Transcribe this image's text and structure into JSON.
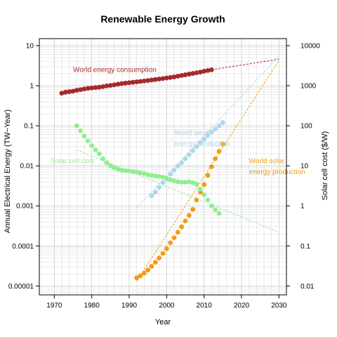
{
  "chart_data": {
    "type": "scatter",
    "title": "Renewable Energy Growth",
    "xlabel": "Year",
    "ylabel": "Annual Electrical Energy (TW−Year)",
    "y2label": "Solar cell cost ($/W)",
    "xlim": [
      1966,
      2032
    ],
    "ylim": [
      6e-06,
      15
    ],
    "y2lim": [
      0.006,
      15000
    ],
    "y_scale": "log",
    "y2_scale": "log",
    "grid": true,
    "x_ticks": [
      1970,
      1980,
      1990,
      2000,
      2010,
      2020,
      2030
    ],
    "y_ticks": [
      {
        "value": 10,
        "label": "10"
      },
      {
        "value": 1,
        "label": "1"
      },
      {
        "value": 0.1,
        "label": "0.1"
      },
      {
        "value": 0.01,
        "label": "0.01"
      },
      {
        "value": 0.001,
        "label": "0.001"
      },
      {
        "value": 0.0001,
        "label": "0.0001"
      },
      {
        "value": 1e-05,
        "label": "0.00001"
      }
    ],
    "y2_ticks": [
      {
        "value": 10000,
        "label": "10000"
      },
      {
        "value": 1000,
        "label": "1000"
      },
      {
        "value": 100,
        "label": "100"
      },
      {
        "value": 10,
        "label": "10"
      },
      {
        "value": 1,
        "label": "1"
      },
      {
        "value": 0.1,
        "label": "0.1"
      },
      {
        "value": 0.01,
        "label": "0.01"
      }
    ],
    "series": [
      {
        "name": "World energy consumption",
        "color": "#a52a2a",
        "axis": "left",
        "points": [
          [
            1972,
            0.65
          ],
          [
            1973,
            0.69
          ],
          [
            1974,
            0.71
          ],
          [
            1975,
            0.73
          ],
          [
            1976,
            0.77
          ],
          [
            1977,
            0.8
          ],
          [
            1978,
            0.83
          ],
          [
            1979,
            0.86
          ],
          [
            1980,
            0.88
          ],
          [
            1981,
            0.9
          ],
          [
            1982,
            0.92
          ],
          [
            1983,
            0.95
          ],
          [
            1984,
            0.99
          ],
          [
            1985,
            1.02
          ],
          [
            1986,
            1.05
          ],
          [
            1987,
            1.09
          ],
          [
            1988,
            1.13
          ],
          [
            1989,
            1.16
          ],
          [
            1990,
            1.19
          ],
          [
            1991,
            1.22
          ],
          [
            1992,
            1.25
          ],
          [
            1993,
            1.28
          ],
          [
            1994,
            1.31
          ],
          [
            1995,
            1.35
          ],
          [
            1996,
            1.39
          ],
          [
            1997,
            1.43
          ],
          [
            1998,
            1.47
          ],
          [
            1999,
            1.51
          ],
          [
            2000,
            1.56
          ],
          [
            2001,
            1.61
          ],
          [
            2002,
            1.66
          ],
          [
            2003,
            1.73
          ],
          [
            2004,
            1.8
          ],
          [
            2005,
            1.87
          ],
          [
            2006,
            1.95
          ],
          [
            2007,
            2.03
          ],
          [
            2008,
            2.11
          ],
          [
            2009,
            2.19
          ],
          [
            2010,
            2.3
          ],
          [
            2011,
            2.4
          ],
          [
            2012,
            2.5
          ]
        ],
        "trend": [
          [
            2012,
            2.5
          ],
          [
            2030,
            4.6
          ]
        ]
      },
      {
        "name": "World wind energy production",
        "color": "#add8e6",
        "axis": "left",
        "points": [
          [
            1996,
            0.0018
          ],
          [
            1997,
            0.0022
          ],
          [
            1998,
            0.0029
          ],
          [
            1999,
            0.0038
          ],
          [
            2000,
            0.0047
          ],
          [
            2001,
            0.0062
          ],
          [
            2002,
            0.0078
          ],
          [
            2003,
            0.0098
          ],
          [
            2004,
            0.012
          ],
          [
            2005,
            0.015
          ],
          [
            2006,
            0.019
          ],
          [
            2007,
            0.024
          ],
          [
            2008,
            0.03
          ],
          [
            2009,
            0.038
          ],
          [
            2010,
            0.047
          ],
          [
            2011,
            0.058
          ],
          [
            2012,
            0.07
          ],
          [
            2013,
            0.083
          ],
          [
            2014,
            0.1
          ],
          [
            2015,
            0.12
          ]
        ],
        "trend": [
          [
            1992,
            0.0009
          ],
          [
            2030,
            5.5
          ]
        ]
      },
      {
        "name": "World solar energy production",
        "color": "#f39c12",
        "axis": "left",
        "points": [
          [
            1992,
            1.6e-05
          ],
          [
            1993,
            1.8e-05
          ],
          [
            1994,
            2.1e-05
          ],
          [
            1995,
            2.5e-05
          ],
          [
            1996,
            3.1e-05
          ],
          [
            1997,
            3.9e-05
          ],
          [
            1998,
            5e-05
          ],
          [
            1999,
            6.5e-05
          ],
          [
            2000,
            8.5e-05
          ],
          [
            2001,
            0.00012
          ],
          [
            2002,
            0.00016
          ],
          [
            2003,
            0.00022
          ],
          [
            2004,
            0.0003
          ],
          [
            2005,
            0.00042
          ],
          [
            2006,
            0.00058
          ],
          [
            2007,
            0.00082
          ],
          [
            2008,
            0.0014
          ],
          [
            2009,
            0.0022
          ],
          [
            2010,
            0.0034
          ],
          [
            2011,
            0.0058
          ],
          [
            2012,
            0.0095
          ],
          [
            2013,
            0.015
          ],
          [
            2014,
            0.023
          ],
          [
            2015,
            0.035
          ]
        ],
        "trend": [
          [
            1992,
            1.3e-05
          ],
          [
            2030,
            4.3
          ]
        ]
      },
      {
        "name": "Solar cell cost",
        "color": "#90ee90",
        "axis": "right",
        "points": [
          [
            1976,
            100
          ],
          [
            1977,
            75
          ],
          [
            1978,
            55
          ],
          [
            1979,
            42
          ],
          [
            1980,
            32
          ],
          [
            1981,
            25
          ],
          [
            1982,
            20
          ],
          [
            1983,
            15
          ],
          [
            1984,
            12
          ],
          [
            1985,
            10
          ],
          [
            1986,
            9
          ],
          [
            1987,
            8.2
          ],
          [
            1988,
            7.7
          ],
          [
            1989,
            7.6
          ],
          [
            1990,
            7.4
          ],
          [
            1991,
            7.2
          ],
          [
            1992,
            7.0
          ],
          [
            1993,
            6.7
          ],
          [
            1994,
            6.4
          ],
          [
            1995,
            6.0
          ],
          [
            1996,
            5.8
          ],
          [
            1997,
            5.6
          ],
          [
            1998,
            5.4
          ],
          [
            1999,
            5.2
          ],
          [
            2000,
            4.9
          ],
          [
            2001,
            4.5
          ],
          [
            2002,
            4.2
          ],
          [
            2003,
            4.0
          ],
          [
            2004,
            3.9
          ],
          [
            2005,
            3.9
          ],
          [
            2006,
            4.0
          ],
          [
            2007,
            3.8
          ],
          [
            2008,
            3.5
          ],
          [
            2009,
            2.6
          ],
          [
            2010,
            1.9
          ],
          [
            2011,
            1.4
          ],
          [
            2012,
            1.0
          ],
          [
            2013,
            0.8
          ],
          [
            2014,
            0.65
          ]
        ],
        "trend": [
          [
            1976,
            25
          ],
          [
            2030,
            0.22
          ]
        ]
      }
    ],
    "annotations": [
      {
        "text": "World energy consumption",
        "color": "#a52a2a",
        "x": 1975,
        "y": 2.2
      },
      {
        "text": "World wind",
        "color": "#add8e6",
        "x": 2002,
        "y": 0.058
      },
      {
        "text": "energy production",
        "color": "#add8e6",
        "x": 2002,
        "y": 0.031
      },
      {
        "text": "Solar cell cost",
        "color": "#90ee90",
        "x": 1969,
        "y": 0.0115
      },
      {
        "text": "World solar",
        "color": "#f39c12",
        "x": 2022,
        "y": 0.0115
      },
      {
        "text": "energy production",
        "color": "#f39c12",
        "x": 2022,
        "y": 0.0062
      }
    ]
  }
}
